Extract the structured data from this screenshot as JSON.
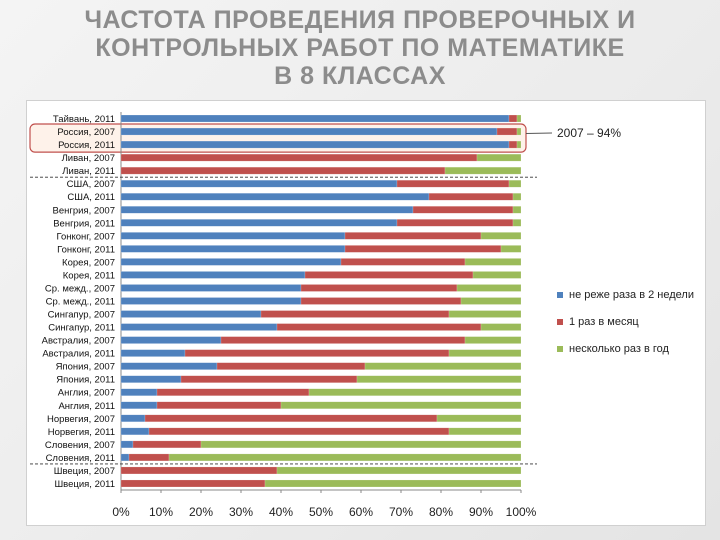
{
  "title_lines": [
    "ЧАСТОТА ПРОВЕДЕНИЯ ПРОВЕРОЧНЫХ И",
    "КОНТРОЛЬНЫХ РАБОТ ПО МАТЕМАТИКЕ",
    "В 8 КЛАССАХ"
  ],
  "callout": "2007 – 94%",
  "chart_data": {
    "type": "bar",
    "orientation": "horizontal",
    "stacked": "percent",
    "categories": [
      "Тайвань, 2011",
      "Россия, 2007",
      "Россия, 2011",
      "Ливан, 2007",
      "Ливан, 2011",
      "США, 2007",
      "США, 2011",
      "Венгрия, 2007",
      "Венгрия, 2011",
      "Гонконг, 2007",
      "Гонконг, 2011",
      "Корея, 2007",
      "Корея, 2011",
      "Ср. межд., 2007",
      "Ср. межд., 2011",
      "Сингапур, 2007",
      "Сингапур, 2011",
      "Австралия, 2007",
      "Австралия, 2011",
      "Япония, 2007",
      "Япония, 2011",
      "Англия, 2007",
      "Англия, 2011",
      "Норвегия, 2007",
      "Норвегия, 2011",
      "Словения, 2007",
      "Словения, 2011",
      "Швеция, 2007",
      "Швеция, 2011"
    ],
    "series": [
      {
        "name": "не реже раза в 2 недели",
        "color": "#4f81bd",
        "values": [
          97,
          94,
          97,
          0,
          0,
          69,
          77,
          73,
          69,
          56,
          56,
          55,
          46,
          45,
          45,
          35,
          39,
          25,
          16,
          24,
          15,
          9,
          9,
          6,
          7,
          3,
          2,
          0,
          0
        ]
      },
      {
        "name": "1 раз в месяц",
        "color": "#c0504d",
        "values": [
          2,
          5,
          2,
          89,
          81,
          28,
          21,
          25,
          29,
          34,
          39,
          31,
          42,
          39,
          40,
          47,
          51,
          61,
          66,
          37,
          44,
          38,
          31,
          73,
          75,
          17,
          10,
          39,
          36
        ]
      },
      {
        "name": "несколько раз в год",
        "color": "#9bbb59",
        "values": [
          1,
          1,
          1,
          11,
          19,
          3,
          2,
          2,
          2,
          10,
          5,
          14,
          12,
          16,
          15,
          18,
          10,
          14,
          18,
          39,
          41,
          53,
          60,
          21,
          18,
          80,
          88,
          61,
          64
        ]
      }
    ],
    "x_ticks": [
      "0%",
      "10%",
      "20%",
      "30%",
      "40%",
      "50%",
      "60%",
      "70%",
      "80%",
      "90%",
      "100%"
    ],
    "xlim": [
      0,
      100
    ],
    "highlighted_categories": [
      "Россия, 2007",
      "Россия, 2011"
    ],
    "separator_after": [
      "Ливан, 2011",
      "Словения, 2011"
    ],
    "grid": false,
    "legend_position": "right"
  }
}
